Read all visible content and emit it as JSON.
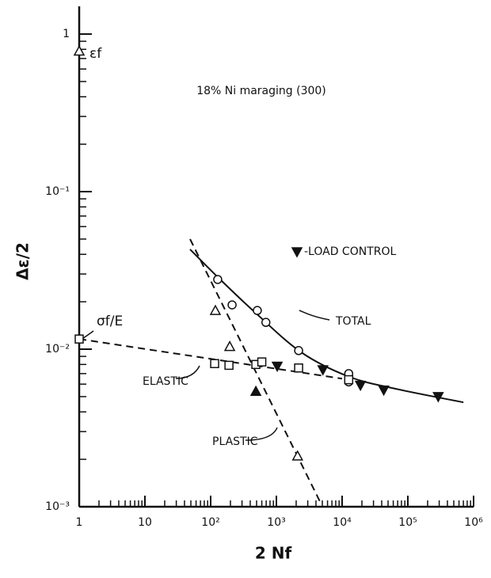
{
  "chart_data": {
    "type": "scatter",
    "title": "18% Ni maraging (300)",
    "xlabel": "2 Nf",
    "ylabel": "Δε/2",
    "xscale": "log",
    "yscale": "log",
    "xlim": [
      1,
      1000000
    ],
    "ylim": [
      0.001,
      1.5
    ],
    "xticks": [
      1,
      10,
      {
        "value": 100,
        "label": "10²"
      },
      {
        "value": 1000,
        "label": "10³"
      },
      {
        "value": 10000,
        "label": "10⁴"
      },
      {
        "value": 100000,
        "label": "10⁵"
      },
      {
        "value": 1000000,
        "label": "10⁶"
      }
    ],
    "yticks": [
      {
        "value": 0.001,
        "label": "10⁻³"
      },
      {
        "value": 0.01,
        "label": "10⁻²"
      },
      {
        "value": 0.1,
        "label": "10⁻¹"
      },
      1
    ],
    "annotations": [
      "TOTAL",
      "ELASTIC",
      "PLASTIC",
      "σf/E",
      "εf"
    ],
    "series": [
      {
        "name": "TOTAL",
        "style": "solid",
        "color": "#111",
        "x": [
          48.6,
          128,
          447,
          2350,
          12600,
          66000,
          700000
        ],
        "values": [
          0.043,
          0.0287,
          0.0175,
          0.0096,
          0.0067,
          0.0056,
          0.0046
        ]
      },
      {
        "name": "ELASTIC",
        "style": "dashed",
        "color": "#111",
        "x": [
          1,
          10000
        ],
        "values": [
          0.0116,
          0.0065
        ]
      },
      {
        "name": "PLASTIC",
        "style": "dashed",
        "color": "#111",
        "x": [
          48.6,
          4700
        ],
        "values": [
          0.05,
          0.00106
        ]
      },
      {
        "marker": "circle",
        "color": "#111",
        "x": [
          128,
          212,
          513,
          692,
          2180,
          12600,
          12600
        ],
        "values": [
          0.0277,
          0.0191,
          0.0176,
          0.0148,
          0.0098,
          0.007,
          0.0062
        ]
      },
      {
        "marker": "square",
        "color": "#111",
        "x": [
          1,
          115,
          190,
          487,
          600,
          2180,
          12600
        ],
        "values": [
          0.0116,
          0.0081,
          0.0079,
          0.008,
          0.0083,
          0.0076,
          0.0064
        ]
      },
      {
        "marker": "triangle",
        "color": "#111",
        "x": [
          1,
          118,
          195,
          2100
        ],
        "values": [
          0.78,
          0.0176,
          0.0104,
          0.0021
        ]
      },
      {
        "marker": "triangle-filled",
        "color": "#111",
        "x": [
          487
        ],
        "values": [
          0.0054
        ]
      },
      {
        "name": "-LOAD CONTROL",
        "marker": "triangle-down-filled",
        "color": "#111",
        "x": [
          1030,
          5100,
          19000,
          43000,
          290000
        ],
        "values": [
          0.0078,
          0.0074,
          0.0059,
          0.0055,
          0.005
        ]
      }
    ]
  }
}
